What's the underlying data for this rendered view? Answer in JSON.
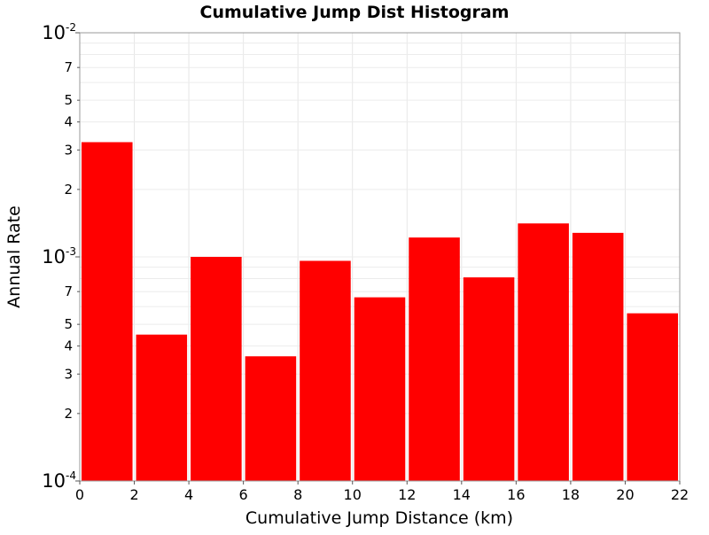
{
  "chart_data": {
    "type": "bar",
    "title": "Cumulative Jump Dist Histogram",
    "xlabel": "Cumulative Jump Distance (km)",
    "ylabel": "Annual Rate",
    "y_scale": "log",
    "xlim": [
      0,
      22
    ],
    "ylim": [
      0.0001,
      0.01
    ],
    "x_ticks": [
      "0",
      "2",
      "4",
      "6",
      "8",
      "10",
      "12",
      "14",
      "16",
      "18",
      "20",
      "22"
    ],
    "y_decade_labels": [
      {
        "base": "10",
        "exp": "-4",
        "value": 0.0001
      },
      {
        "base": "10",
        "exp": "-3",
        "value": 0.001
      },
      {
        "base": "10",
        "exp": "-2",
        "value": 0.01
      }
    ],
    "y_minor_labels": [
      "2",
      "3",
      "4",
      "5",
      "7"
    ],
    "bar_color": "#ff0000",
    "grid": true,
    "bins": [
      {
        "x_start": 0,
        "x_end": 2,
        "value": 0.00325
      },
      {
        "x_start": 2,
        "x_end": 4,
        "value": 0.00045
      },
      {
        "x_start": 4,
        "x_end": 6,
        "value": 0.001
      },
      {
        "x_start": 6,
        "x_end": 8,
        "value": 0.00036
      },
      {
        "x_start": 8,
        "x_end": 10,
        "value": 0.00096
      },
      {
        "x_start": 10,
        "x_end": 12,
        "value": 0.00066
      },
      {
        "x_start": 12,
        "x_end": 14,
        "value": 0.00122
      },
      {
        "x_start": 14,
        "x_end": 16,
        "value": 0.00081
      },
      {
        "x_start": 16,
        "x_end": 18,
        "value": 0.00141
      },
      {
        "x_start": 18,
        "x_end": 20,
        "value": 0.00128
      },
      {
        "x_start": 20,
        "x_end": 22,
        "value": 0.00056
      }
    ]
  }
}
